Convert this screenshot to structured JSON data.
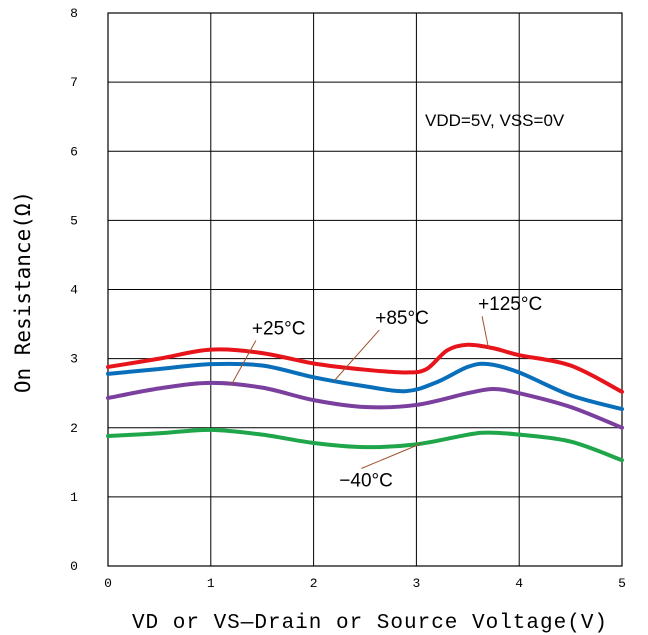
{
  "chart_data": {
    "type": "line",
    "title": "",
    "xlabel": "VD or VS—Drain or Source Voltage(V)",
    "ylabel": "On Resistance(Ω)",
    "xlim": [
      0,
      5
    ],
    "ylim": [
      0,
      8
    ],
    "x_ticks": [
      "0",
      "1",
      "2",
      "3",
      "4",
      "5"
    ],
    "y_ticks": [
      "0",
      "1",
      "2",
      "3",
      "4",
      "5",
      "6",
      "7",
      "8"
    ],
    "grid": true,
    "condition": "VDD=5V, VSS=0V",
    "series": [
      {
        "name": "+125°C",
        "color": "#e8141b",
        "x": [
          0,
          0.5,
          1,
          1.5,
          2,
          2.5,
          2.9,
          3.1,
          3.3,
          3.5,
          3.75,
          4,
          4.5,
          5
        ],
        "y": [
          2.88,
          3.0,
          3.13,
          3.08,
          2.93,
          2.84,
          2.8,
          2.85,
          3.12,
          3.2,
          3.15,
          3.05,
          2.9,
          2.52
        ]
      },
      {
        "name": "+85°C",
        "color": "#0a6fba",
        "x": [
          0,
          0.5,
          1,
          1.5,
          2,
          2.5,
          2.9,
          3.2,
          3.5,
          3.7,
          4,
          4.5,
          5
        ],
        "y": [
          2.78,
          2.85,
          2.92,
          2.9,
          2.73,
          2.6,
          2.53,
          2.66,
          2.88,
          2.92,
          2.8,
          2.47,
          2.27
        ]
      },
      {
        "name": "+25°C",
        "color": "#7b3f9e",
        "x": [
          0,
          0.5,
          1,
          1.5,
          2,
          2.5,
          3,
          3.5,
          3.75,
          4,
          4.5,
          5
        ],
        "y": [
          2.43,
          2.57,
          2.65,
          2.58,
          2.4,
          2.3,
          2.33,
          2.5,
          2.56,
          2.5,
          2.3,
          2.0
        ]
      },
      {
        "name": "−40°C",
        "color": "#1fa64a",
        "x": [
          0,
          0.5,
          1,
          1.5,
          2,
          2.5,
          3,
          3.5,
          3.7,
          4,
          4.5,
          5
        ],
        "y": [
          1.88,
          1.92,
          1.97,
          1.9,
          1.78,
          1.72,
          1.76,
          1.9,
          1.93,
          1.9,
          1.8,
          1.53
        ]
      }
    ],
    "annotations": [
      {
        "text": "+125°C",
        "series": 0,
        "at_x": 3.7,
        "label_x": 3.6,
        "label_y": 3.7
      },
      {
        "text": "+85°C",
        "series": 1,
        "at_x": 2.2,
        "label_x": 2.6,
        "label_y": 3.5
      },
      {
        "text": "+25°C",
        "series": 2,
        "at_x": 1.2,
        "label_x": 1.4,
        "label_y": 3.35
      },
      {
        "text": "−40°C",
        "series": 3,
        "at_x": 3.05,
        "label_x": 2.25,
        "label_y": 1.15
      }
    ]
  }
}
